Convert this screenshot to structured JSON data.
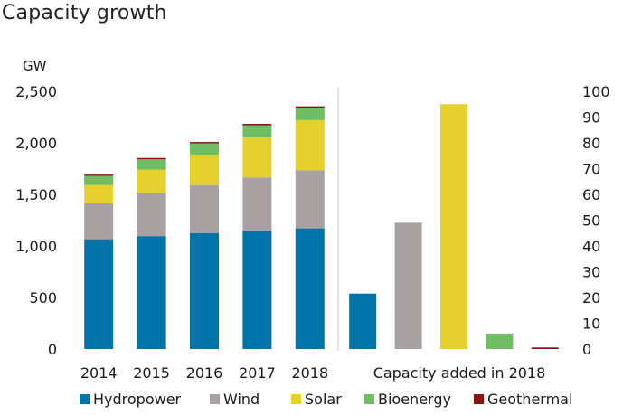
{
  "title": "Capacity growth",
  "chart_data": [
    {
      "type": "bar",
      "stacked": true,
      "unit_label": "GW",
      "categories": [
        "2014",
        "2015",
        "2016",
        "2017",
        "2018"
      ],
      "ylim": [
        0,
        2500
      ],
      "yticks": [
        "0",
        "500",
        "1,000",
        "1,500",
        "2,000",
        "2,500"
      ],
      "ytick_values": [
        0,
        500,
        1000,
        1500,
        2000,
        2500
      ],
      "series": [
        {
          "name": "Hydropower",
          "color": "#0273a8",
          "values": [
            1065,
            1095,
            1125,
            1150,
            1170
          ]
        },
        {
          "name": "Wind",
          "color": "#a9a1a1",
          "values": [
            350,
            420,
            465,
            515,
            565
          ]
        },
        {
          "name": "Solar",
          "color": "#e5d02e",
          "values": [
            175,
            225,
            295,
            390,
            485
          ]
        },
        {
          "name": "Bioenergy",
          "color": "#6fbe63",
          "values": [
            90,
            100,
            110,
            115,
            120
          ]
        },
        {
          "name": "Geothermal",
          "color": "#8c1414",
          "values": [
            12,
            13,
            13,
            14,
            14
          ]
        }
      ]
    },
    {
      "type": "bar",
      "xlabel": "Capacity added in 2018",
      "ylim": [
        0,
        100
      ],
      "yticks": [
        "0",
        "10",
        "20",
        "30",
        "40",
        "50",
        "60",
        "70",
        "80",
        "90",
        "100"
      ],
      "ytick_values": [
        0,
        10,
        20,
        30,
        40,
        50,
        60,
        70,
        80,
        90,
        100
      ],
      "categories": [
        "Hydropower",
        "Wind",
        "Solar",
        "Bioenergy",
        "Geothermal"
      ],
      "values": [
        21.5,
        49,
        95,
        6,
        0.6
      ],
      "colors": [
        "#0273a8",
        "#a9a1a1",
        "#e5d02e",
        "#6fbe63",
        "#8c1414"
      ]
    }
  ],
  "legend": [
    {
      "label": "Hydropower",
      "color": "#0273a8"
    },
    {
      "label": "Wind",
      "color": "#a9a1a1"
    },
    {
      "label": "Solar",
      "color": "#e5d02e"
    },
    {
      "label": "Bioenergy",
      "color": "#6fbe63"
    },
    {
      "label": "Geothermal",
      "color": "#8c1414"
    }
  ]
}
